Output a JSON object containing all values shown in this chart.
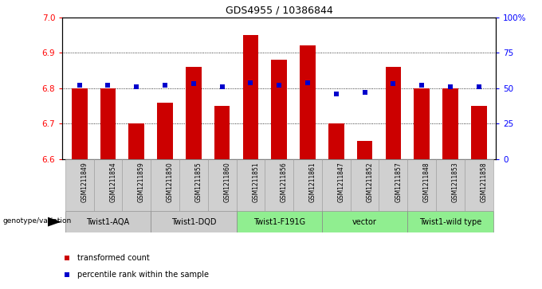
{
  "title": "GDS4955 / 10386844",
  "samples": [
    "GSM1211849",
    "GSM1211854",
    "GSM1211859",
    "GSM1211850",
    "GSM1211855",
    "GSM1211860",
    "GSM1211851",
    "GSM1211856",
    "GSM1211861",
    "GSM1211847",
    "GSM1211852",
    "GSM1211857",
    "GSM1211848",
    "GSM1211853",
    "GSM1211858"
  ],
  "bar_values": [
    6.8,
    6.8,
    6.7,
    6.76,
    6.86,
    6.75,
    6.95,
    6.88,
    6.92,
    6.7,
    6.65,
    6.86,
    6.8,
    6.8,
    6.75
  ],
  "percentile_values": [
    52,
    52,
    51,
    52,
    53,
    51,
    54,
    52,
    54,
    46,
    47,
    53,
    52,
    51,
    51
  ],
  "ymin": 6.6,
  "ymax": 7.0,
  "yticks_left": [
    6.6,
    6.7,
    6.8,
    6.9,
    7.0
  ],
  "yticks_right": [
    0,
    25,
    50,
    75,
    100
  ],
  "ytick_right_labels": [
    "0",
    "25",
    "50",
    "75",
    "100%"
  ],
  "bar_color": "#cc0000",
  "percentile_color": "#0000cc",
  "grid_lines": [
    6.7,
    6.8,
    6.9
  ],
  "groups": [
    {
      "label": "Twist1-AQA",
      "start": 0,
      "end": 2,
      "color": "#cccccc"
    },
    {
      "label": "Twist1-DQD",
      "start": 3,
      "end": 5,
      "color": "#cccccc"
    },
    {
      "label": "Twist1-F191G",
      "start": 6,
      "end": 8,
      "color": "#90ee90"
    },
    {
      "label": "vector",
      "start": 9,
      "end": 11,
      "color": "#90ee90"
    },
    {
      "label": "Twist1-wild type",
      "start": 12,
      "end": 14,
      "color": "#90ee90"
    }
  ],
  "legend_red_label": "transformed count",
  "legend_blue_label": "percentile rank within the sample",
  "genotype_label": "genotype/variation",
  "title_fontsize": 9,
  "tick_fontsize": 7.5,
  "sample_fontsize": 5.5,
  "group_fontsize": 7,
  "legend_fontsize": 7
}
